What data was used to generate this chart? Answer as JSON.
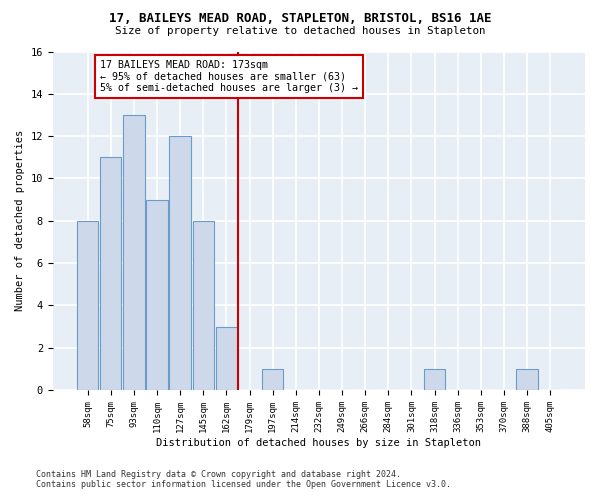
{
  "title1": "17, BAILEYS MEAD ROAD, STAPLETON, BRISTOL, BS16 1AE",
  "title2": "Size of property relative to detached houses in Stapleton",
  "xlabel": "Distribution of detached houses by size in Stapleton",
  "ylabel": "Number of detached properties",
  "bar_color": "#cdd9ea",
  "bar_edge_color": "#6b9bc7",
  "fig_background_color": "#ffffff",
  "plot_background_color": "#e8eef5",
  "grid_color": "#ffffff",
  "bin_labels": [
    "58sqm",
    "75sqm",
    "93sqm",
    "110sqm",
    "127sqm",
    "145sqm",
    "162sqm",
    "179sqm",
    "197sqm",
    "214sqm",
    "232sqm",
    "249sqm",
    "266sqm",
    "284sqm",
    "301sqm",
    "318sqm",
    "336sqm",
    "353sqm",
    "370sqm",
    "388sqm",
    "405sqm"
  ],
  "bar_values": [
    8,
    11,
    13,
    9,
    12,
    8,
    3,
    0,
    1,
    0,
    0,
    0,
    0,
    0,
    0,
    1,
    0,
    0,
    0,
    1,
    0
  ],
  "vline_x": 7.0,
  "annotation_line1": "17 BAILEYS MEAD ROAD: 173sqm",
  "annotation_line2": "← 95% of detached houses are smaller (63)",
  "annotation_line3": "5% of semi-detached houses are larger (3) →",
  "vline_color": "#cc0000",
  "annotation_box_edge_color": "#cc0000",
  "footer_line1": "Contains HM Land Registry data © Crown copyright and database right 2024.",
  "footer_line2": "Contains public sector information licensed under the Open Government Licence v3.0.",
  "ylim": [
    0,
    16
  ],
  "yticks": [
    0,
    2,
    4,
    6,
    8,
    10,
    12,
    14,
    16
  ]
}
